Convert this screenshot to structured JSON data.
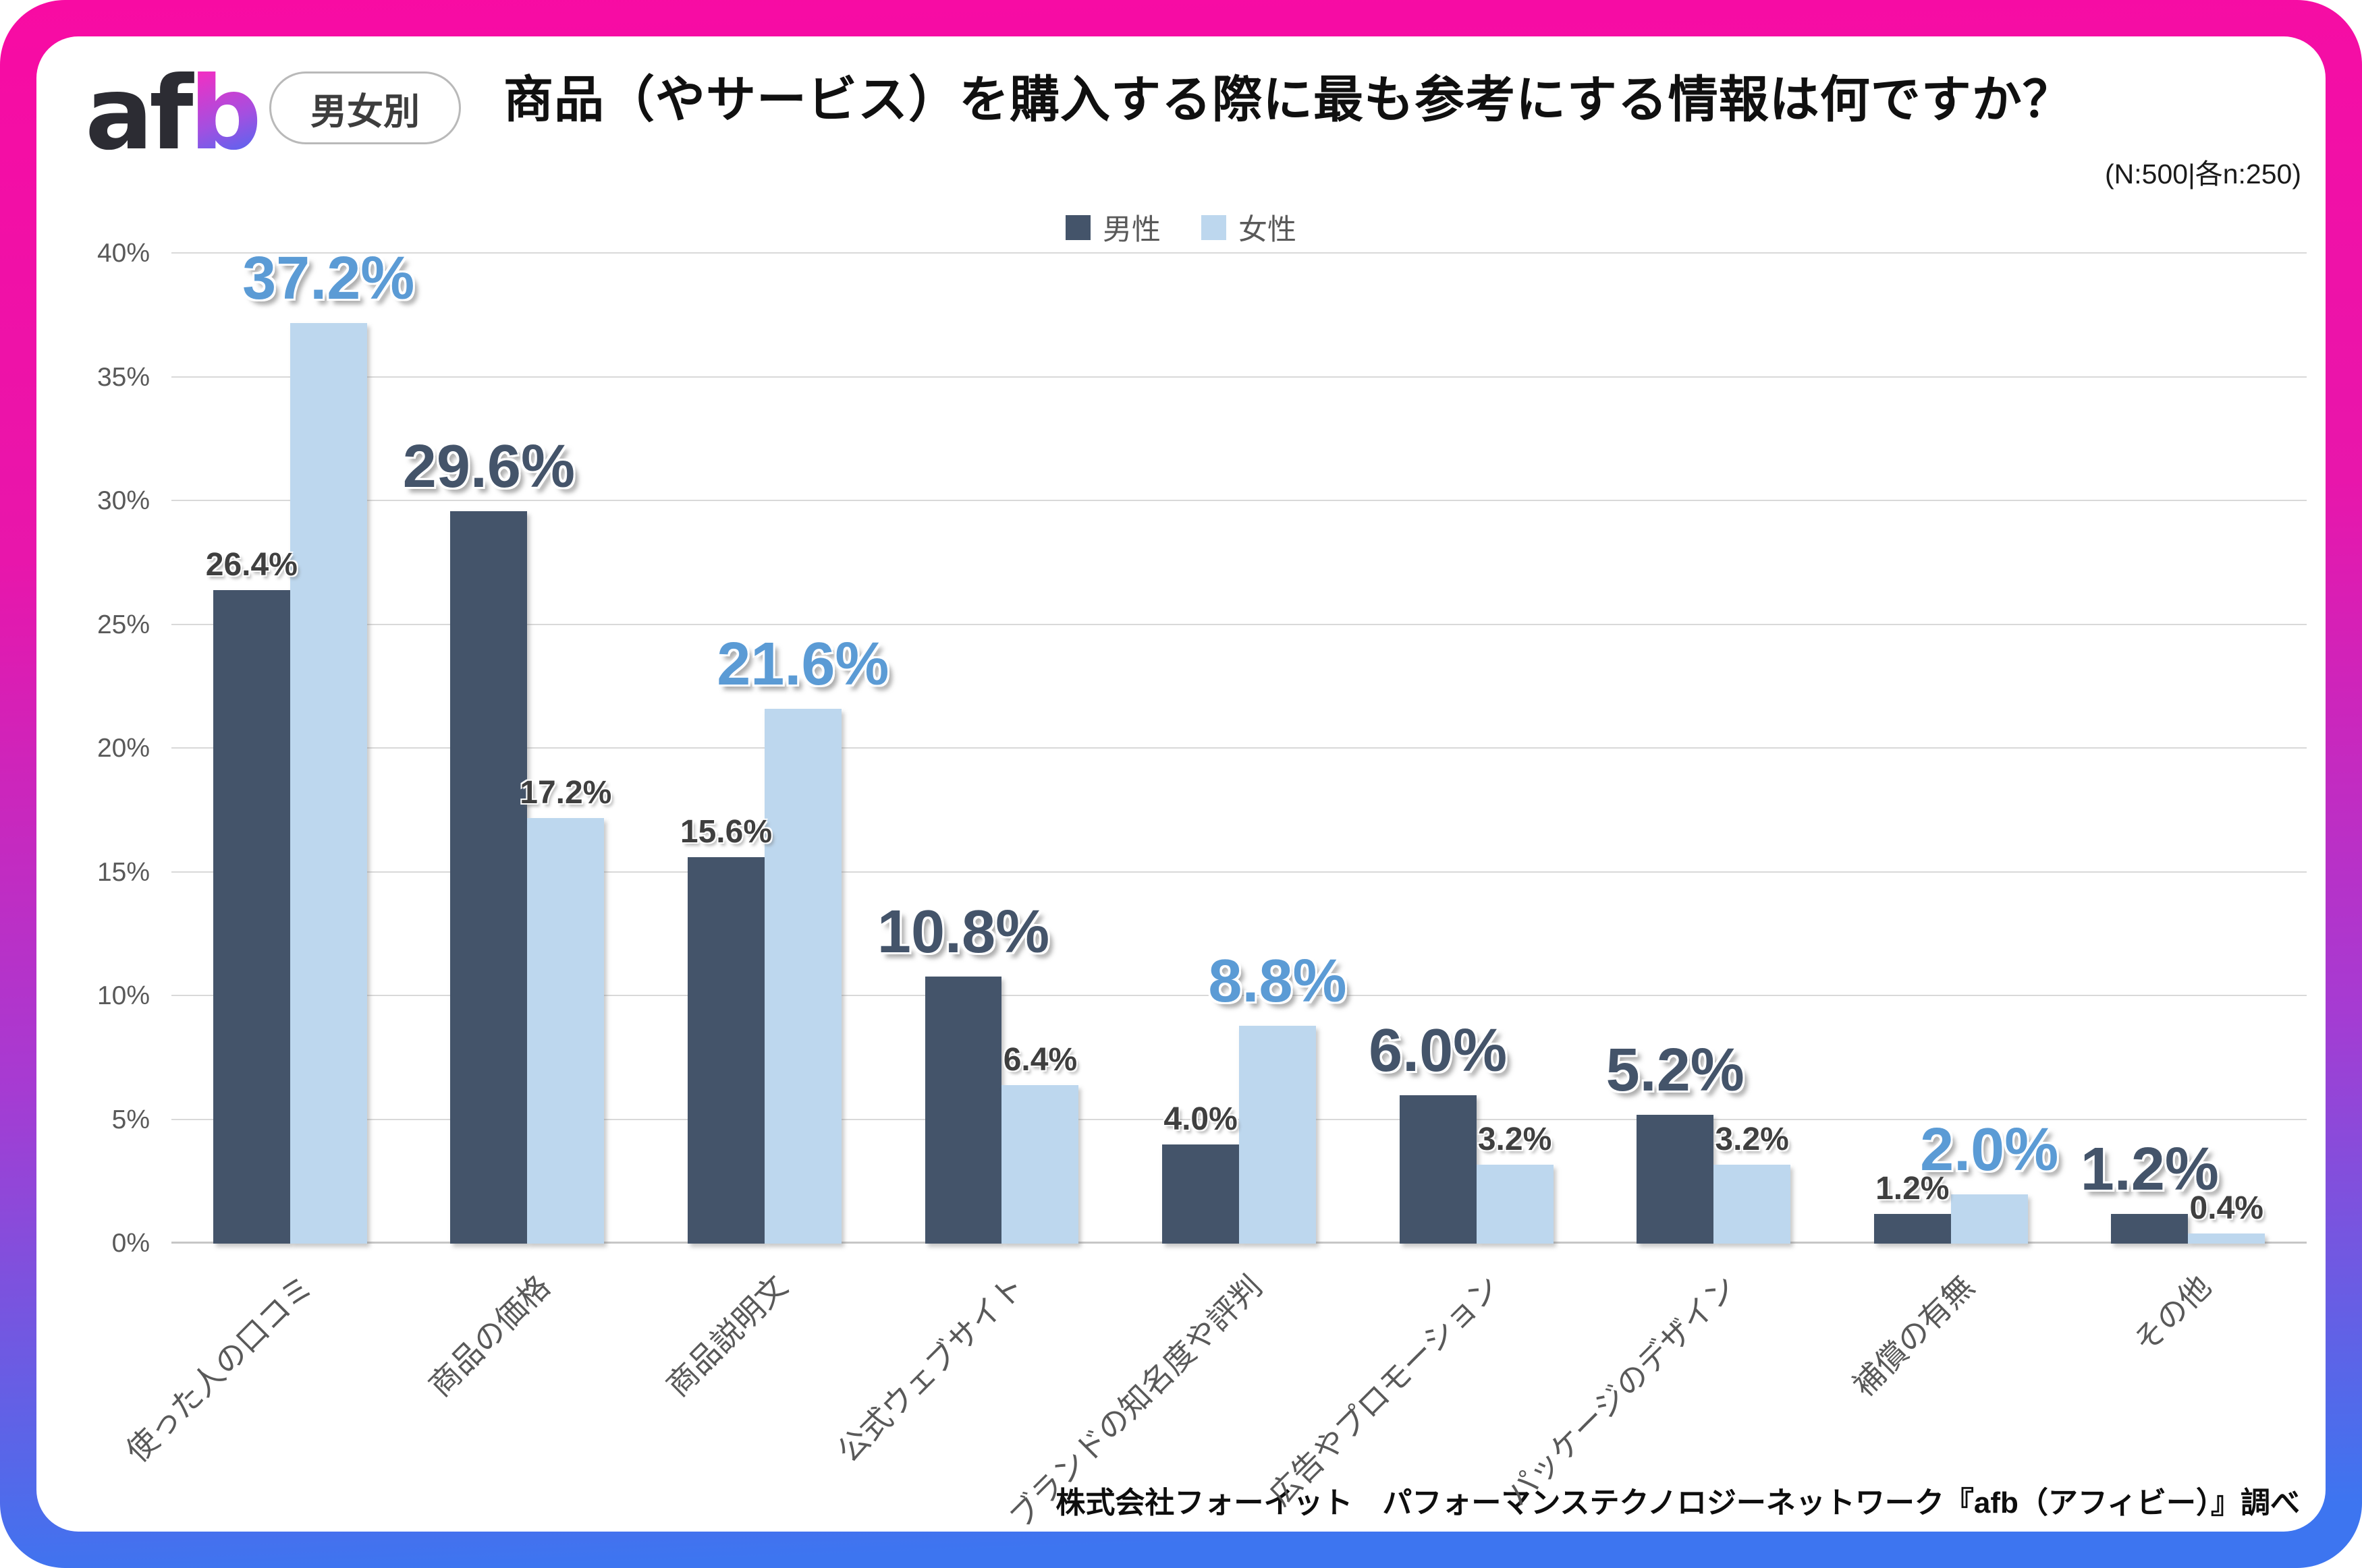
{
  "brand": {
    "logo_a": "a",
    "logo_f": "f",
    "logo_b": "b"
  },
  "header": {
    "badge": "男女別",
    "title": "商品（やサービス）を購入する際に最も参考にする情報は何ですか？",
    "sample_note": "(N:500|各n:250)"
  },
  "legend": [
    {
      "label": "男性",
      "color": "#44546A"
    },
    {
      "label": "女性",
      "color": "#BDD7EE"
    }
  ],
  "chart_data": {
    "type": "bar",
    "title": "商品（やサービス）を購入する際に最も参考にする情報は何ですか？",
    "categories": [
      "使った人の口コミ",
      "商品の価格",
      "商品説明文",
      "公式ウェブサイト",
      "ブランドの知名度や評判",
      "広告やプロモーション",
      "パッケージのデザイン",
      "補償の有無",
      "その他"
    ],
    "series": [
      {
        "name": "男性",
        "color": "#44546A",
        "label_color": "#44546A",
        "values": [
          26.4,
          29.6,
          15.6,
          10.8,
          4.0,
          6.0,
          5.2,
          1.2,
          1.2
        ]
      },
      {
        "name": "女性",
        "color": "#BDD7EE",
        "label_color": "#5B9BD5",
        "values": [
          37.2,
          17.2,
          21.6,
          6.4,
          8.8,
          3.2,
          3.2,
          2.0,
          0.4
        ]
      }
    ],
    "value_suffix": "%",
    "ylim": [
      0,
      40
    ],
    "ytick_step": 5,
    "yticks": [
      "0%",
      "5%",
      "10%",
      "15%",
      "20%",
      "25%",
      "30%",
      "35%",
      "40%"
    ],
    "grid": true,
    "legend_position": "top"
  },
  "footer": {
    "source": "株式会社フォーイット　パフォーマンステクノロジーネットワーク『afb（アフィビー）』調べ"
  }
}
